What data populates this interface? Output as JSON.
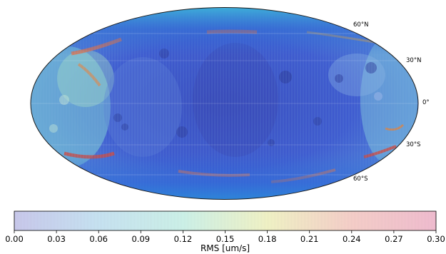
{
  "map": {
    "projection": "Mollweide",
    "latitude_labels": [
      "60°N",
      "30°N",
      "0°",
      "30°S",
      "60°S"
    ],
    "latitude_values": [
      60,
      30,
      0,
      -30,
      -60
    ]
  },
  "colorbar": {
    "label": "RMS [um/s]",
    "min": 0.0,
    "max": 0.3,
    "tick_labels": [
      "0.00",
      "0.03",
      "0.06",
      "0.09",
      "0.12",
      "0.15",
      "0.18",
      "0.21",
      "0.24",
      "0.27",
      "0.30"
    ],
    "colormap_stops": [
      "#c9c9ee",
      "#c7e4f4",
      "#cdf3ea",
      "#f3f5c6",
      "#f8cfc9",
      "#f2bcd0"
    ]
  },
  "colors": {
    "map_base": "#3f5fd8",
    "map_outline": "#1a1a1a"
  }
}
